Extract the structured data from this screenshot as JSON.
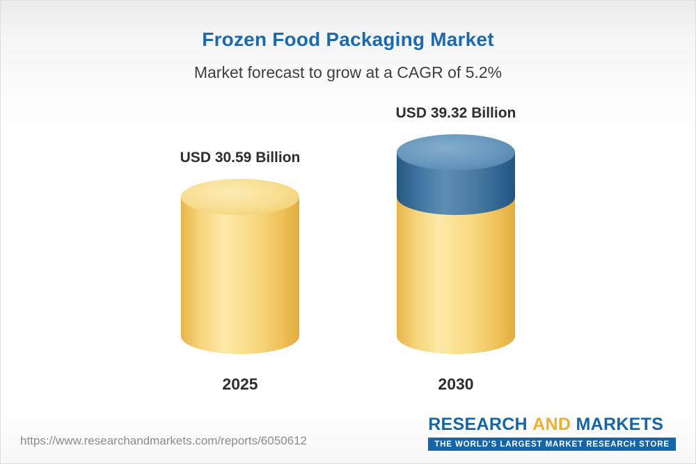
{
  "header": {
    "title": "Frozen Food Packaging Market",
    "subtitle": "Market forecast to grow at a CAGR of 5.2%"
  },
  "chart_data": {
    "type": "bar",
    "variant": "3d-cylinder",
    "categories": [
      "2025",
      "2030"
    ],
    "values": [
      30.59,
      39.32
    ],
    "value_labels": [
      "USD 30.59 Billion",
      "USD 39.32 Billion"
    ],
    "unit": "USD Billion",
    "title": "Frozen Food Packaging Market",
    "subtitle": "Market forecast to grow at a CAGR of 5.2%",
    "cagr_percent": 5.2,
    "ylim": [
      0,
      39.32
    ],
    "grid": "off",
    "legend": "none",
    "colors": {
      "base_bar": "#F7D77C",
      "growth_segment": "#336E9A",
      "title_accent": "#1A6AAD"
    }
  },
  "footer": {
    "report_url": "https://www.researchandmarkets.com/reports/6050612",
    "logo": {
      "word1": "RESEARCH",
      "word2": "AND",
      "word3": "MARKETS",
      "tagline": "THE WORLD'S LARGEST MARKET RESEARCH STORE",
      "brand_blue": "#1566A9",
      "brand_gold": "#F0AE2C"
    }
  }
}
